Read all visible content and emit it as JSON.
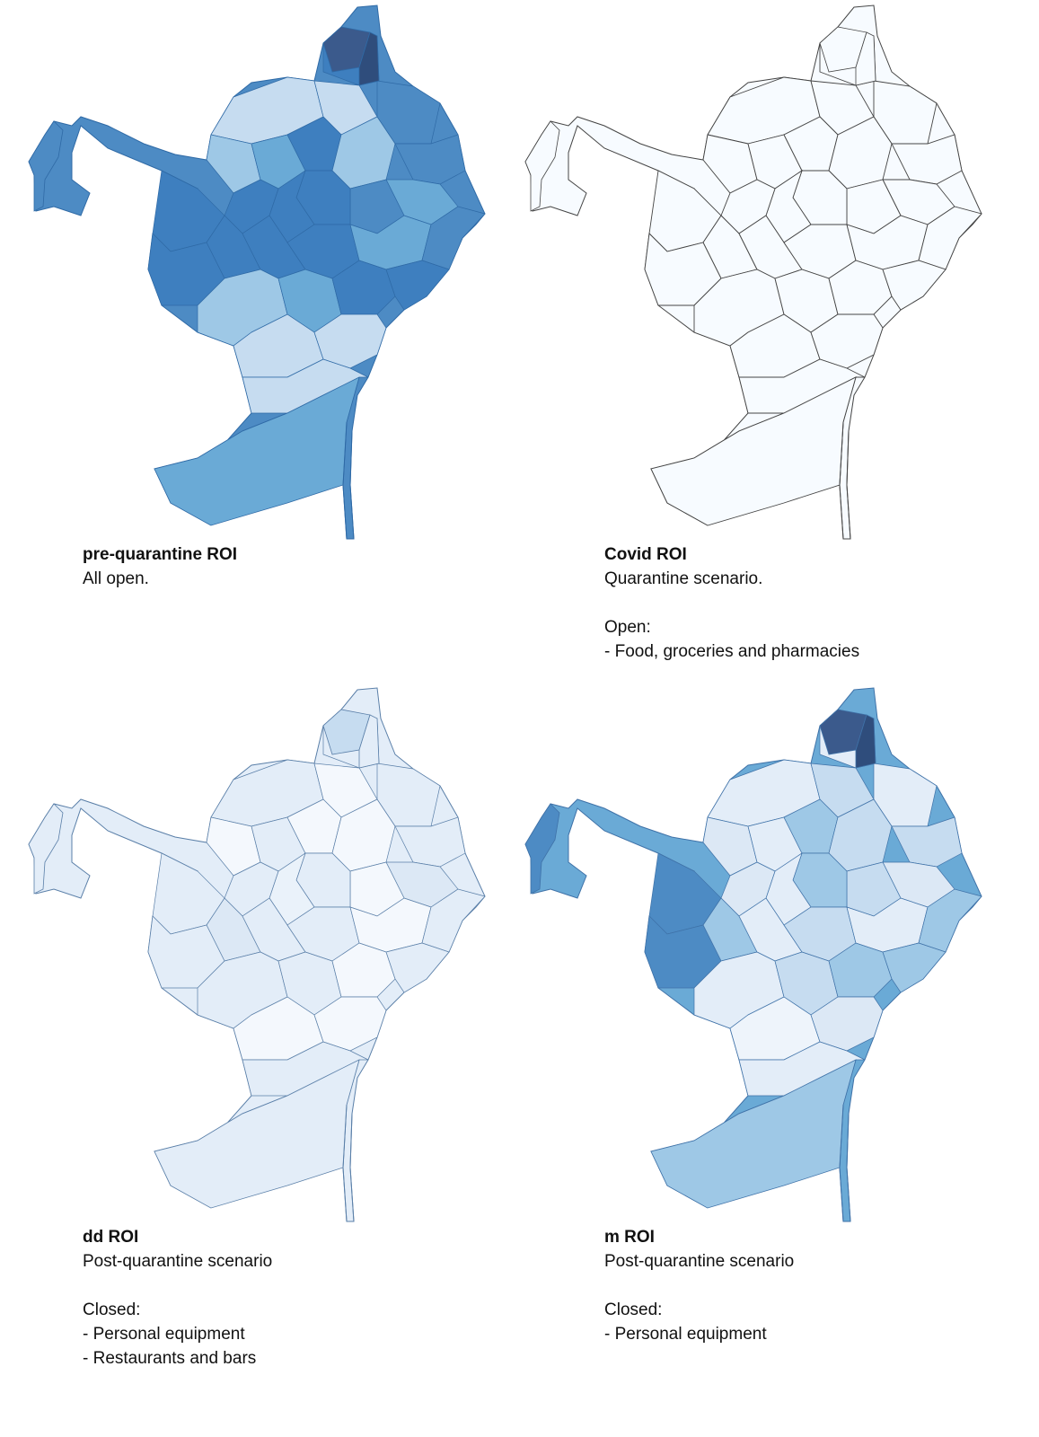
{
  "panels": [
    {
      "title": "pre-quarantine ROI",
      "lines": [
        "All open."
      ],
      "section_label": "",
      "items": [],
      "palette": [
        "#6aaad6",
        "#3e7fbf",
        "#4d8bc4",
        "#9ec8e6",
        "#c6dcf0",
        "#5896cc"
      ],
      "stroke": "#2f6aa6",
      "highlight": [
        "#3b5a8c",
        "#2f4d7c"
      ]
    },
    {
      "title": "Covid ROI",
      "lines": [
        "Quarantine scenario."
      ],
      "section_label": "Open:",
      "items": [
        "- Food, groceries and pharmacies"
      ],
      "palette": [
        "#f7fbff"
      ],
      "stroke": "#444444",
      "highlight": [
        "#f7fbff",
        "#f7fbff"
      ]
    },
    {
      "title": "dd ROI",
      "lines": [
        "Post-quarantine scenario"
      ],
      "section_label": "Closed:",
      "items": [
        "- Personal equipment",
        "- Restaurants and bars"
      ],
      "palette": [
        "#e3edf8",
        "#f4f8fd",
        "#dce8f5",
        "#eaf2fa"
      ],
      "stroke": "#5a7fa8",
      "highlight": [
        "#c6dcf0",
        "#e3edf8"
      ]
    },
    {
      "title": "m ROI",
      "lines": [
        "Post-quarantine scenario"
      ],
      "section_label": "Closed:",
      "items": [
        "- Personal equipment"
      ],
      "palette": [
        "#e3edf8",
        "#c6dcf0",
        "#9ec8e6",
        "#dce8f5",
        "#eef4fb"
      ],
      "stroke": "#3f72a8",
      "highlight": [
        "#3b5a8c",
        "#2f4d7c"
      ]
    }
  ]
}
